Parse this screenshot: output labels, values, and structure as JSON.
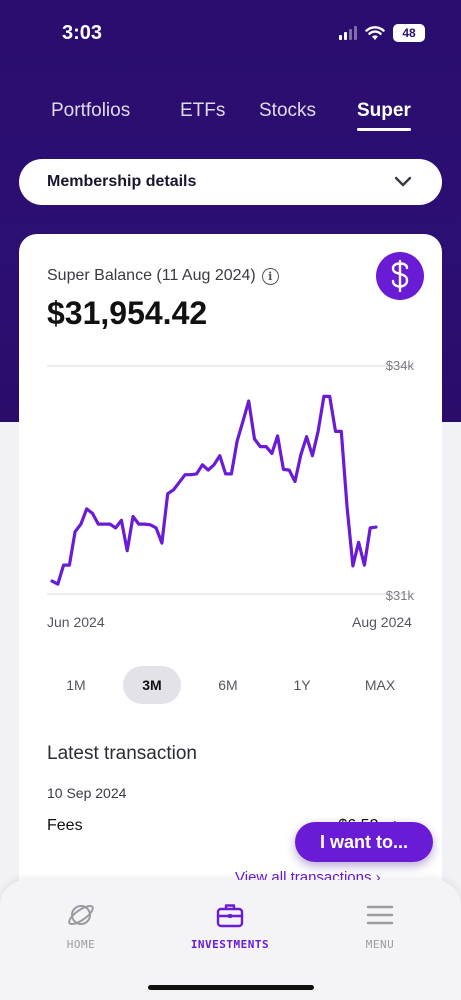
{
  "status_bar": {
    "time": "3:03",
    "battery": "48"
  },
  "tabs": [
    {
      "label": "Portfolios"
    },
    {
      "label": "ETFs"
    },
    {
      "label": "Stocks"
    },
    {
      "label": "Super"
    }
  ],
  "membership": {
    "label": "Membership details"
  },
  "balance": {
    "label": "Super Balance (11 Aug 2024)",
    "value": "$31,954.42"
  },
  "chart_data": {
    "type": "line",
    "title": "",
    "xlabel": "",
    "ylabel": "",
    "ylim": [
      31000,
      34000
    ],
    "y_tick_labels": [
      "$34k",
      "$31k"
    ],
    "x_tick_labels": [
      "Jun 2024",
      "Aug 2024"
    ],
    "series": [
      {
        "color": "#6a1bd6",
        "values": [
          31170,
          31130,
          31380,
          31380,
          31820,
          31920,
          32120,
          32060,
          31920,
          31920,
          31920,
          31870,
          31970,
          31570,
          32020,
          31920,
          31920,
          31910,
          31870,
          31670,
          32320,
          32370,
          32470,
          32570,
          32570,
          32580,
          32700,
          32630,
          32700,
          32820,
          32580,
          32580,
          33010,
          33270,
          33540,
          33040,
          32940,
          32940,
          32850,
          33080,
          32640,
          32630,
          32480,
          32830,
          33070,
          32820,
          33140,
          33600,
          33600,
          33140,
          33140,
          32140,
          31370,
          31680,
          31380,
          31870,
          31880
        ]
      }
    ]
  },
  "range_selector": {
    "options": [
      "1M",
      "3M",
      "6M",
      "1Y",
      "MAX"
    ],
    "selected": "3M"
  },
  "latest_transaction": {
    "title": "Latest transaction",
    "date": "10 Sep 2024",
    "name": "Fees",
    "amount": "-$6.52",
    "view_all": "View all transactions ›"
  },
  "fab": {
    "label": "I want to..."
  },
  "bottom_nav": {
    "items": [
      {
        "label": "HOME",
        "icon": "planet-icon"
      },
      {
        "label": "INVESTMENTS",
        "icon": "briefcase-icon"
      },
      {
        "label": "MENU",
        "icon": "hamburger-icon"
      }
    ],
    "active": "INVESTMENTS"
  },
  "colors": {
    "brand_purple": "#6a1bd6",
    "header_bg": "#2a0d6e"
  }
}
